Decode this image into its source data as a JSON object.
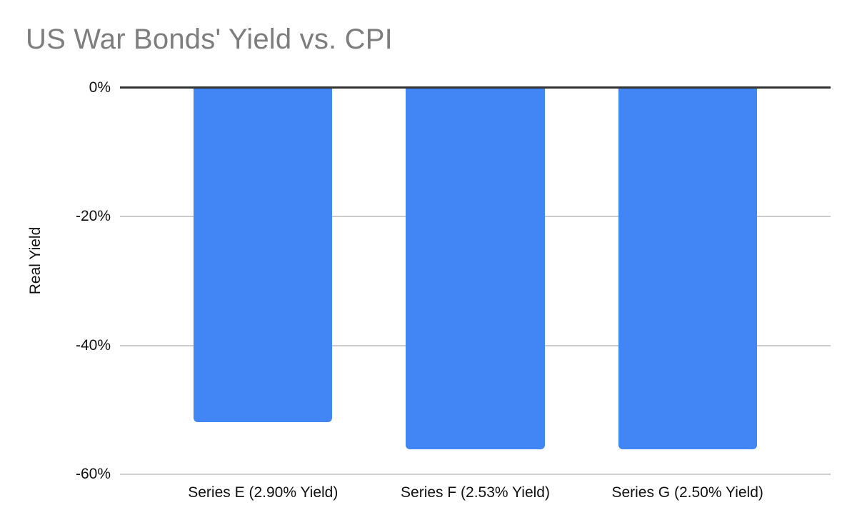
{
  "title": "US War Bonds' Yield vs. CPI",
  "colors": {
    "bar": "#4285f4",
    "title_text": "#7d7d7d",
    "axis_line": "#333333",
    "gridline": "#cccccc",
    "tick_text": "#111111",
    "background": "#ffffff"
  },
  "chart_data": {
    "type": "bar",
    "orientation": "vertical",
    "title": "US War Bonds' Yield vs. CPI",
    "xlabel": "",
    "ylabel": "Real Yield",
    "categories": [
      "Series E (2.90% Yield)",
      "Series F (2.53% Yield)",
      "Series G (2.50% Yield)"
    ],
    "values": [
      -52.0,
      -56.2,
      -56.2
    ],
    "ylim": [
      -60,
      0
    ],
    "yticks": [
      0,
      -20,
      -40,
      -60
    ],
    "ytick_labels": [
      "0%",
      "-20%",
      "-40%",
      "-60%"
    ],
    "grid": true,
    "legend": false
  }
}
